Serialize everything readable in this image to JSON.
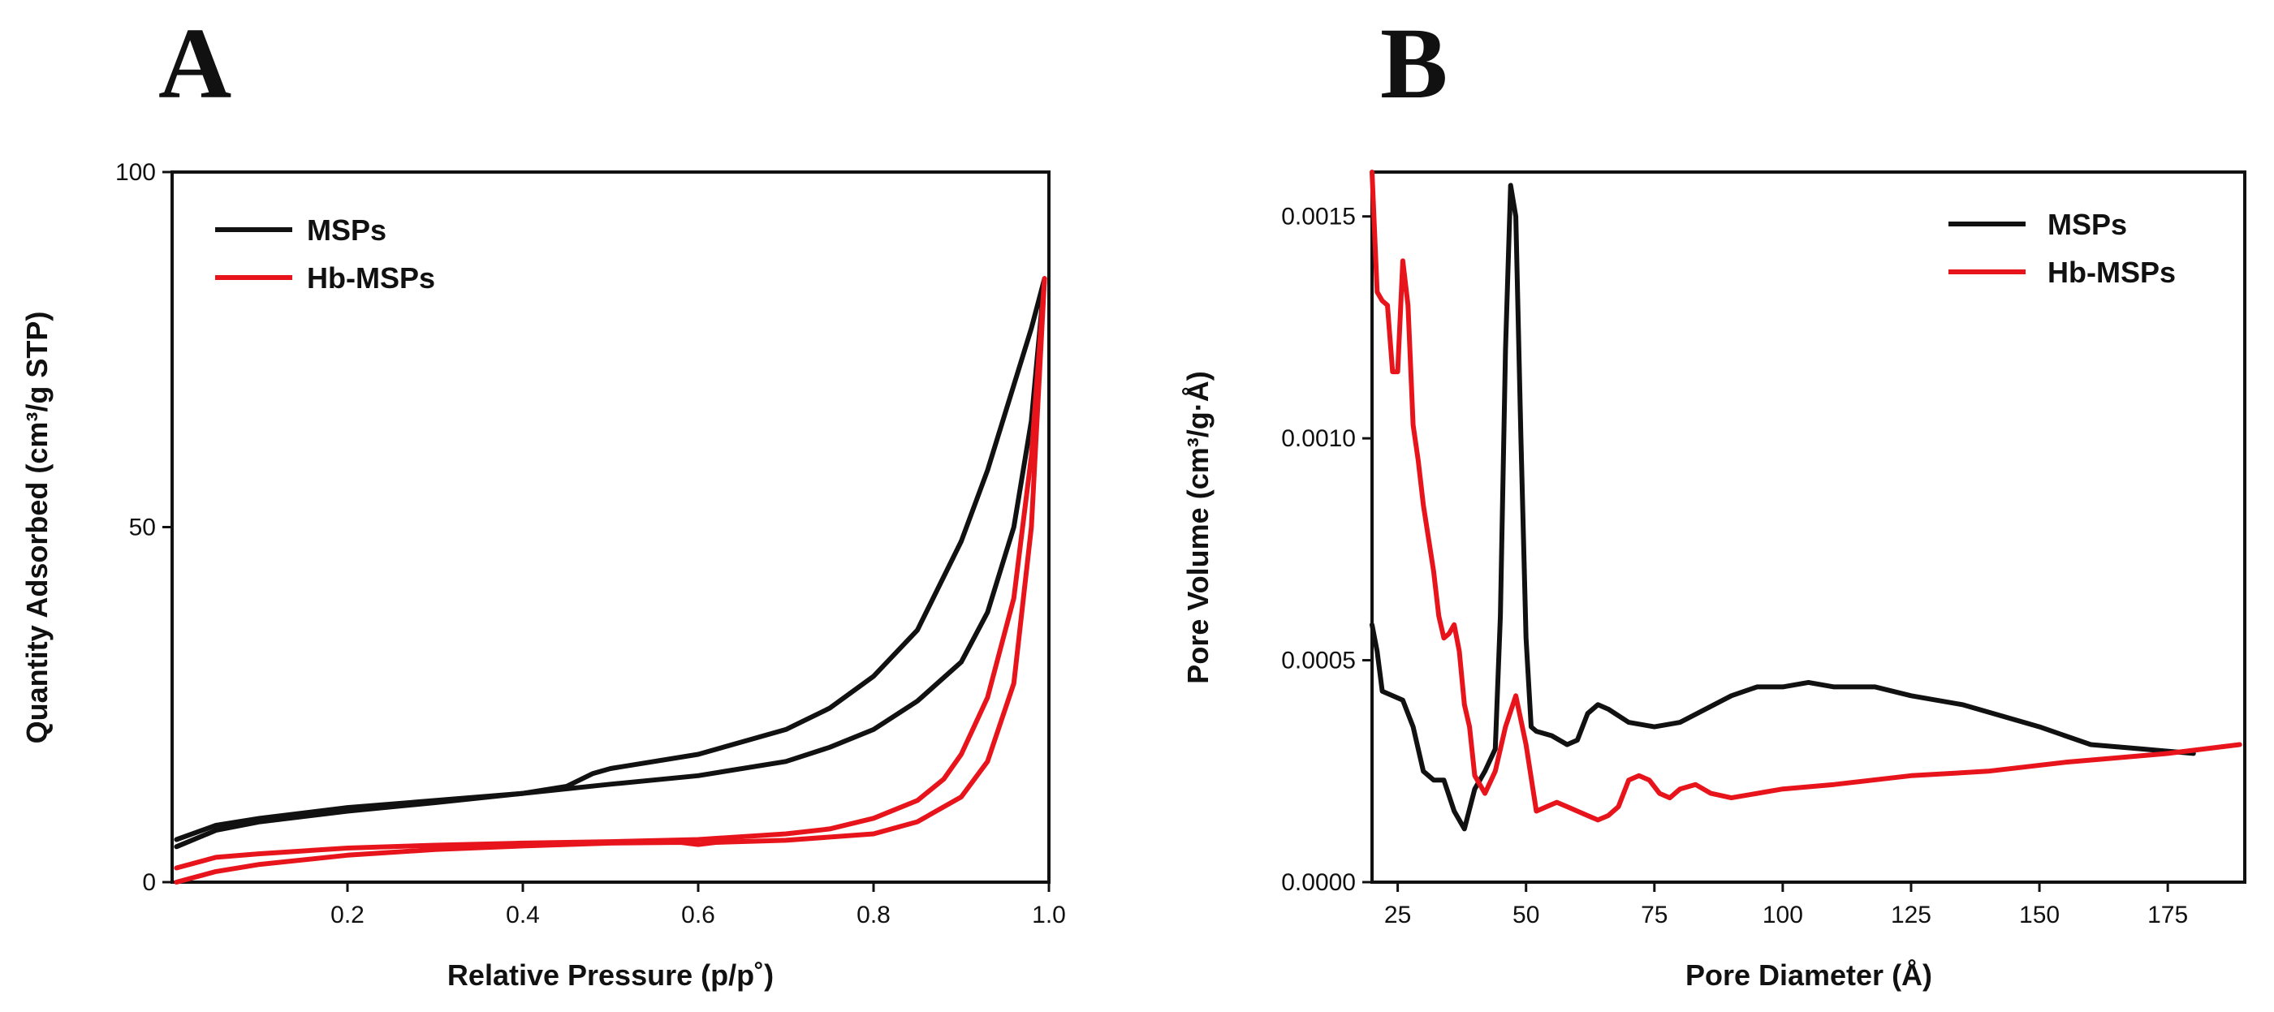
{
  "chart_data": [
    {
      "panel": "A",
      "type": "line",
      "xlabel": "Relative Pressure (p/p˚)",
      "ylabel": "Quantity Adsorbed (cm³/g STP)",
      "xlim": [
        0.0,
        1.0
      ],
      "ylim": [
        0,
        100
      ],
      "xticks": [
        0.2,
        0.4,
        0.6,
        0.8,
        1.0
      ],
      "xtick_labels": [
        "0.2",
        "0.4",
        "0.6",
        "0.8",
        "1.0"
      ],
      "yticks": [
        0,
        50,
        100
      ],
      "ytick_labels": [
        "0",
        "50",
        "100"
      ],
      "legend_position": "top-left",
      "series": [
        {
          "name": "MSPs",
          "legend": true,
          "color": "#111111",
          "x": [
            0.005,
            0.05,
            0.1,
            0.2,
            0.3,
            0.4,
            0.45,
            0.48,
            0.5,
            0.6,
            0.7,
            0.75,
            0.8,
            0.85,
            0.9,
            0.93,
            0.96,
            0.98,
            0.995
          ],
          "y": [
            6.0,
            8.0,
            9.0,
            10.5,
            11.5,
            12.5,
            13.5,
            15.3,
            16.0,
            18.0,
            21.5,
            24.5,
            29.0,
            35.5,
            48.0,
            58.0,
            70.0,
            78.0,
            85.0
          ]
        },
        {
          "name": "MSPs",
          "legend": false,
          "color": "#111111",
          "x": [
            0.005,
            0.05,
            0.1,
            0.2,
            0.3,
            0.4,
            0.5,
            0.6,
            0.7,
            0.75,
            0.8,
            0.85,
            0.9,
            0.93,
            0.96,
            0.98,
            0.995
          ],
          "y": [
            5.0,
            7.3,
            8.5,
            10.0,
            11.2,
            12.5,
            13.8,
            15.0,
            17.0,
            19.0,
            21.5,
            25.5,
            31.0,
            38.0,
            50.0,
            65.0,
            85.0
          ]
        },
        {
          "name": "Hb-MSPs",
          "legend": true,
          "color": "#e8141c",
          "x": [
            0.005,
            0.05,
            0.1,
            0.2,
            0.3,
            0.4,
            0.5,
            0.6,
            0.7,
            0.75,
            0.8,
            0.85,
            0.88,
            0.9,
            0.93,
            0.96,
            0.98,
            0.995
          ],
          "y": [
            2.0,
            3.5,
            4.0,
            4.8,
            5.2,
            5.5,
            5.7,
            6.0,
            6.8,
            7.5,
            9.0,
            11.5,
            14.5,
            18.0,
            26.0,
            40.0,
            60.0,
            85.0
          ]
        },
        {
          "name": "Hb-MSPs",
          "legend": false,
          "color": "#e8141c",
          "x": [
            0.005,
            0.05,
            0.1,
            0.2,
            0.3,
            0.4,
            0.5,
            0.58,
            0.6,
            0.62,
            0.7,
            0.8,
            0.85,
            0.9,
            0.93,
            0.96,
            0.98,
            0.995
          ],
          "y": [
            0.0,
            1.5,
            2.5,
            3.8,
            4.6,
            5.1,
            5.5,
            5.6,
            5.3,
            5.6,
            5.9,
            6.8,
            8.5,
            12.0,
            17.0,
            28.0,
            50.0,
            85.0
          ]
        }
      ]
    },
    {
      "panel": "B",
      "type": "line",
      "xlabel": "Pore Diameter (Å)",
      "ylabel": "Pore Volume (cm³/g·Å)",
      "xlim": [
        20,
        190
      ],
      "ylim": [
        0,
        0.0016
      ],
      "xticks": [
        25,
        50,
        75,
        100,
        125,
        150,
        175
      ],
      "xtick_labels": [
        "25",
        "50",
        "75",
        "100",
        "125",
        "150",
        "175"
      ],
      "yticks": [
        0,
        0.0005,
        0.001,
        0.0015
      ],
      "ytick_labels": [
        "0.0000",
        "0.0005",
        "0.0010",
        "0.0015"
      ],
      "legend_position": "top-right",
      "series": [
        {
          "name": "MSPs",
          "legend": true,
          "color": "#111111",
          "x": [
            20,
            21,
            22,
            24,
            26,
            28,
            30,
            32,
            34,
            36,
            38,
            40,
            42,
            44,
            45,
            46,
            47,
            48,
            49,
            50,
            51,
            52,
            55,
            58,
            60,
            62,
            64,
            66,
            70,
            75,
            80,
            85,
            90,
            95,
            100,
            105,
            110,
            118,
            125,
            135,
            150,
            160,
            170,
            180
          ],
          "y": [
            0.00058,
            0.00052,
            0.00043,
            0.00042,
            0.00041,
            0.00035,
            0.00025,
            0.00023,
            0.00023,
            0.00016,
            0.00012,
            0.00021,
            0.00025,
            0.0003,
            0.0006,
            0.0012,
            0.00157,
            0.0015,
            0.001,
            0.00055,
            0.00035,
            0.00034,
            0.00033,
            0.00031,
            0.00032,
            0.00038,
            0.0004,
            0.00039,
            0.00036,
            0.00035,
            0.00036,
            0.00039,
            0.00042,
            0.00044,
            0.00044,
            0.00045,
            0.00044,
            0.00044,
            0.00042,
            0.0004,
            0.00035,
            0.00031,
            0.0003,
            0.00029
          ]
        },
        {
          "name": "Hb-MSPs",
          "legend": true,
          "color": "#e8141c",
          "x": [
            20,
            21,
            22,
            23,
            24,
            25,
            26,
            27,
            28,
            29,
            30,
            32,
            33,
            34,
            35,
            36,
            37,
            38,
            39,
            40,
            42,
            44,
            46,
            48,
            50,
            52,
            54,
            56,
            58,
            60,
            62,
            64,
            66,
            68,
            70,
            72,
            74,
            76,
            78,
            80,
            83,
            86,
            90,
            100,
            110,
            125,
            140,
            155,
            165,
            175,
            189
          ],
          "y": [
            0.0016,
            0.00133,
            0.00131,
            0.0013,
            0.00115,
            0.00115,
            0.0014,
            0.0013,
            0.00103,
            0.00095,
            0.00085,
            0.0007,
            0.0006,
            0.00055,
            0.00056,
            0.00058,
            0.00052,
            0.0004,
            0.00035,
            0.00024,
            0.0002,
            0.00025,
            0.00035,
            0.00042,
            0.00031,
            0.00016,
            0.00017,
            0.00018,
            0.00017,
            0.00016,
            0.00015,
            0.00014,
            0.00015,
            0.00017,
            0.00023,
            0.00024,
            0.00023,
            0.0002,
            0.00019,
            0.00021,
            0.00022,
            0.0002,
            0.00019,
            0.00021,
            0.00022,
            0.00024,
            0.00025,
            0.00027,
            0.00028,
            0.00029,
            0.00031
          ]
        }
      ]
    }
  ]
}
